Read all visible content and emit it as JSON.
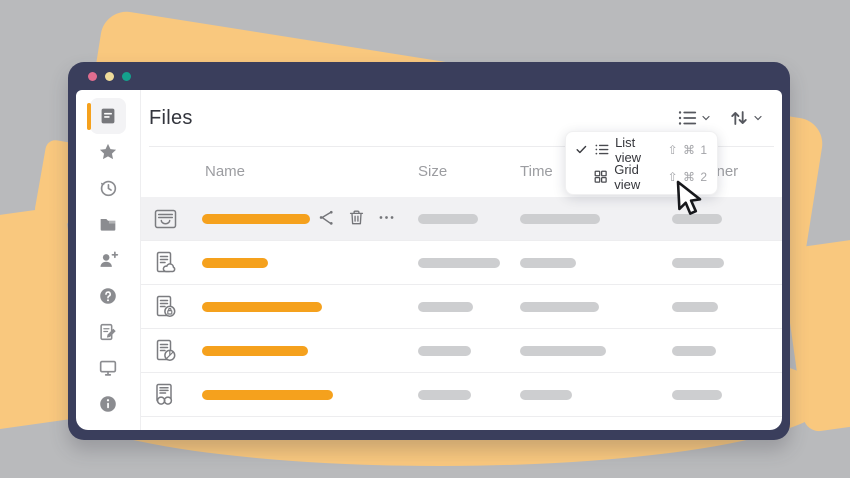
{
  "colors": {
    "bg": "#b9babc",
    "shape": "#f9c87e",
    "frame": "#3a3e5c",
    "accent": "#f5a11d",
    "pill": "#cdced0",
    "row-hl": "#f1f1f3",
    "dot-pink": "#e06d8f",
    "dot-yellow": "#efdb9a",
    "dot-teal": "#14a18d"
  },
  "header": {
    "title": "Files"
  },
  "sidebar": {
    "items": [
      {
        "name": "documents",
        "active": true
      },
      {
        "name": "favorites"
      },
      {
        "name": "recent"
      },
      {
        "name": "folders"
      },
      {
        "name": "shared-with-me"
      },
      {
        "name": "help"
      },
      {
        "name": "notes"
      },
      {
        "name": "devices"
      },
      {
        "name": "about"
      }
    ]
  },
  "table": {
    "columns": {
      "name": "Name",
      "size": "Size",
      "time": "Time",
      "owner": "Owner"
    },
    "rows": [
      {
        "icon": "inbox-file",
        "selected": true,
        "name_w": 108,
        "size_w": 60,
        "time_w": 80,
        "owner_w": 50
      },
      {
        "icon": "file-cloud",
        "name_w": 66,
        "size_w": 82,
        "time_w": 56,
        "owner_w": 52
      },
      {
        "icon": "file-locked",
        "name_w": 120,
        "size_w": 55,
        "time_w": 79,
        "owner_w": 46
      },
      {
        "icon": "file-pie",
        "name_w": 106,
        "size_w": 53,
        "time_w": 86,
        "owner_w": 44
      },
      {
        "icon": "file-binoculars",
        "name_w": 131,
        "size_w": 53,
        "time_w": 52,
        "owner_w": 50
      }
    ]
  },
  "view_menu": {
    "items": [
      {
        "label": "List view",
        "shortcut": "⇧ ⌘ 1",
        "checked": true
      },
      {
        "label": "Grid view",
        "shortcut": "⇧ ⌘ 2",
        "checked": false
      }
    ]
  }
}
